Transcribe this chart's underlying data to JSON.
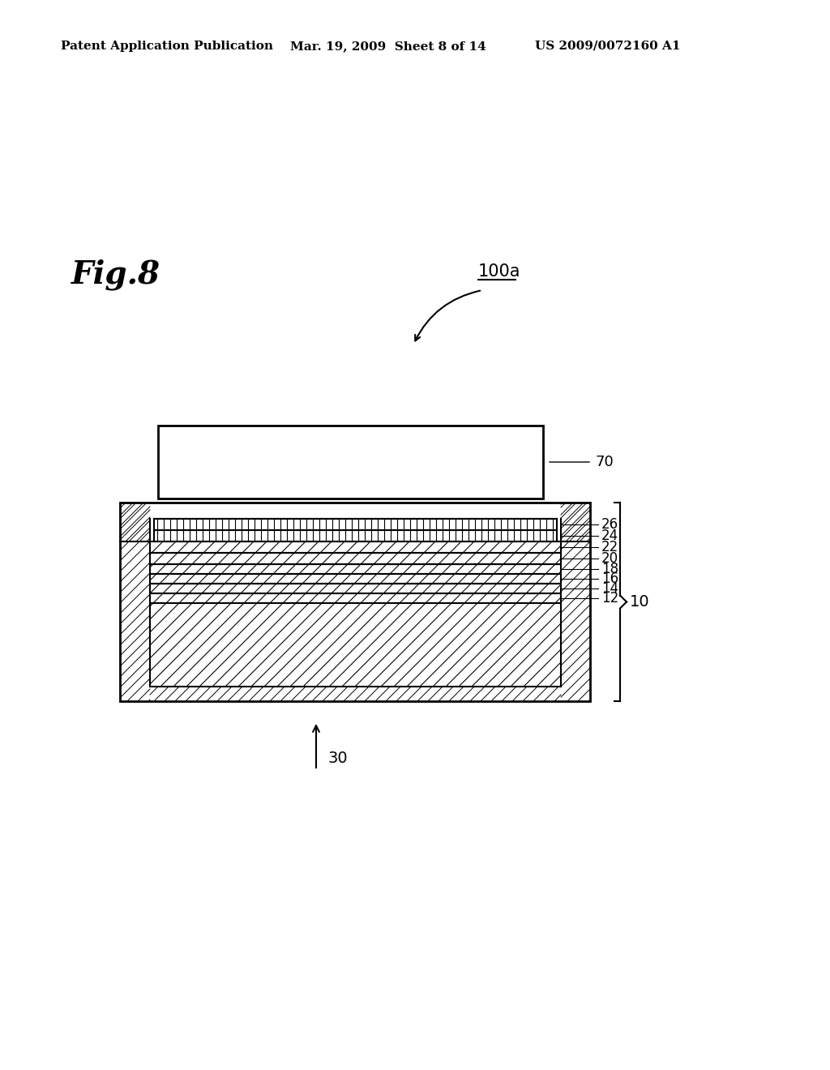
{
  "bg_color": "#ffffff",
  "header_left": "Patent Application Publication",
  "header_center": "Mar. 19, 2009  Sheet 8 of 14",
  "header_right": "US 2009/0072160 A1",
  "fig_label": "Fig.8",
  "label_100a": "100a",
  "label_70": "70",
  "label_26": "26",
  "label_24": "24",
  "label_22": "22",
  "label_20": "20",
  "label_18": "18",
  "label_16": "16",
  "label_14": "14",
  "label_12": "12",
  "label_10": "10",
  "label_30": "30",
  "line_color": "#000000"
}
